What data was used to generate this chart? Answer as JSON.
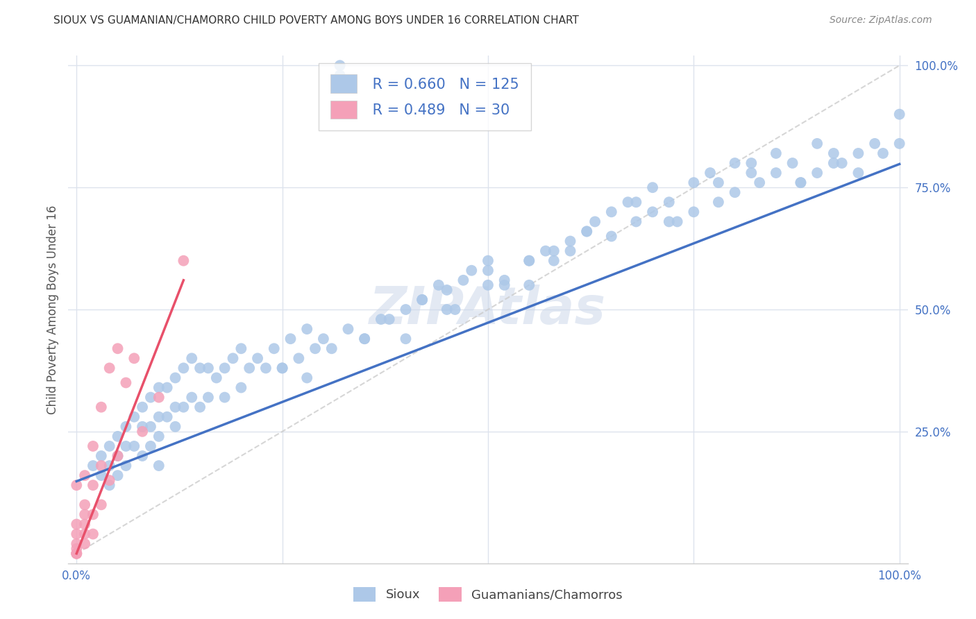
{
  "title": "SIOUX VS GUAMANIAN/CHAMORRO CHILD POVERTY AMONG BOYS UNDER 16 CORRELATION CHART",
  "source": "Source: ZipAtlas.com",
  "ylabel": "Child Poverty Among Boys Under 16",
  "watermark": "ZIPAtlas",
  "sioux_R": 0.66,
  "sioux_N": 125,
  "guam_R": 0.489,
  "guam_N": 30,
  "sioux_color": "#adc8e8",
  "sioux_line_color": "#4472c4",
  "guam_color": "#f4a0b8",
  "guam_line_color": "#e8506a",
  "ref_line_color": "#cccccc",
  "legend_text_color": "#4472c4",
  "background_color": "#ffffff",
  "grid_color": "#dde3ed",
  "title_color": "#333333",
  "source_color": "#888888",
  "ylabel_color": "#555555",
  "tick_label_color": "#4472c4",
  "bottom_legend_color": "#444444",
  "sioux_x": [
    0.02,
    0.03,
    0.03,
    0.04,
    0.04,
    0.04,
    0.05,
    0.05,
    0.05,
    0.06,
    0.06,
    0.06,
    0.07,
    0.07,
    0.08,
    0.08,
    0.08,
    0.09,
    0.09,
    0.09,
    0.1,
    0.1,
    0.1,
    0.1,
    0.11,
    0.11,
    0.12,
    0.12,
    0.12,
    0.13,
    0.13,
    0.14,
    0.14,
    0.15,
    0.15,
    0.16,
    0.16,
    0.17,
    0.18,
    0.18,
    0.19,
    0.2,
    0.2,
    0.21,
    0.22,
    0.23,
    0.24,
    0.25,
    0.26,
    0.27,
    0.28,
    0.29,
    0.3,
    0.31,
    0.33,
    0.35,
    0.37,
    0.4,
    0.42,
    0.45,
    0.47,
    0.5,
    0.5,
    0.52,
    0.55,
    0.55,
    0.57,
    0.58,
    0.6,
    0.6,
    0.62,
    0.63,
    0.65,
    0.65,
    0.67,
    0.68,
    0.7,
    0.7,
    0.72,
    0.73,
    0.75,
    0.75,
    0.77,
    0.78,
    0.8,
    0.8,
    0.82,
    0.83,
    0.85,
    0.85,
    0.87,
    0.88,
    0.9,
    0.9,
    0.92,
    0.93,
    0.95,
    0.95,
    0.97,
    0.98,
    1.0,
    1.0,
    0.32,
    0.32,
    0.48,
    0.5,
    0.55,
    0.38,
    0.42,
    0.44,
    0.46,
    0.52,
    0.58,
    0.62,
    0.68,
    0.72,
    0.78,
    0.82,
    0.88,
    0.92,
    0.25,
    0.28,
    0.35,
    0.4,
    0.45
  ],
  "sioux_y": [
    0.18,
    0.2,
    0.16,
    0.22,
    0.18,
    0.14,
    0.24,
    0.2,
    0.16,
    0.26,
    0.22,
    0.18,
    0.28,
    0.22,
    0.3,
    0.26,
    0.2,
    0.32,
    0.26,
    0.22,
    0.34,
    0.28,
    0.24,
    0.18,
    0.34,
    0.28,
    0.36,
    0.3,
    0.26,
    0.38,
    0.3,
    0.4,
    0.32,
    0.38,
    0.3,
    0.38,
    0.32,
    0.36,
    0.38,
    0.32,
    0.4,
    0.42,
    0.34,
    0.38,
    0.4,
    0.38,
    0.42,
    0.38,
    0.44,
    0.4,
    0.46,
    0.42,
    0.44,
    0.42,
    0.46,
    0.44,
    0.48,
    0.5,
    0.52,
    0.54,
    0.56,
    0.55,
    0.58,
    0.56,
    0.6,
    0.55,
    0.62,
    0.6,
    0.62,
    0.64,
    0.66,
    0.68,
    0.7,
    0.65,
    0.72,
    0.68,
    0.7,
    0.75,
    0.72,
    0.68,
    0.76,
    0.7,
    0.78,
    0.72,
    0.8,
    0.74,
    0.78,
    0.76,
    0.82,
    0.78,
    0.8,
    0.76,
    0.84,
    0.78,
    0.82,
    0.8,
    0.82,
    0.78,
    0.84,
    0.82,
    0.84,
    0.9,
    1.0,
    0.98,
    0.58,
    0.6,
    0.6,
    0.48,
    0.52,
    0.55,
    0.5,
    0.55,
    0.62,
    0.66,
    0.72,
    0.68,
    0.76,
    0.8,
    0.76,
    0.8,
    0.38,
    0.36,
    0.44,
    0.44,
    0.5
  ],
  "guam_x": [
    0.0,
    0.0,
    0.0,
    0.0,
    0.0,
    0.0,
    0.0,
    0.0,
    0.01,
    0.01,
    0.01,
    0.01,
    0.01,
    0.01,
    0.02,
    0.02,
    0.02,
    0.02,
    0.03,
    0.03,
    0.03,
    0.04,
    0.04,
    0.05,
    0.05,
    0.06,
    0.07,
    0.08,
    0.1,
    0.13
  ],
  "guam_y": [
    0.0,
    0.0,
    0.0,
    0.01,
    0.02,
    0.04,
    0.06,
    0.14,
    0.02,
    0.04,
    0.06,
    0.08,
    0.1,
    0.16,
    0.04,
    0.08,
    0.14,
    0.22,
    0.1,
    0.18,
    0.3,
    0.15,
    0.38,
    0.2,
    0.42,
    0.35,
    0.4,
    0.25,
    0.32,
    0.6
  ],
  "sioux_line_x": [
    0.0,
    1.0
  ],
  "sioux_line_y": [
    0.148,
    0.798
  ],
  "guam_line_x": [
    0.0,
    0.13
  ],
  "guam_line_y": [
    0.0,
    0.56
  ],
  "ref_line_x": [
    0.0,
    1.0
  ],
  "ref_line_y": [
    0.0,
    1.0
  ],
  "xlim": [
    0.0,
    1.0
  ],
  "ylim": [
    0.0,
    1.0
  ],
  "xtick_positions": [
    0.0,
    0.25,
    0.5,
    0.75,
    1.0
  ],
  "xtick_labels": [
    "0.0%",
    "",
    "",
    "",
    "100.0%"
  ],
  "ytick_positions": [
    0.25,
    0.5,
    0.75,
    1.0
  ],
  "ytick_labels": [
    "25.0%",
    "50.0%",
    "75.0%",
    "100.0%"
  ]
}
